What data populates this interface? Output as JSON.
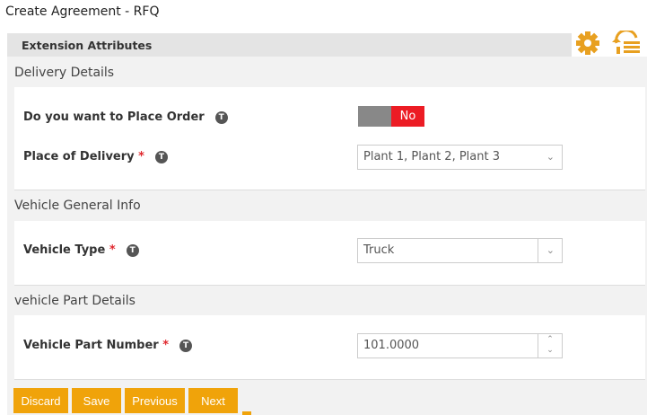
{
  "title": "Create Agreement - RFQ",
  "extension_label": "Extension Attributes",
  "icons": {
    "settings": "gear-icon",
    "back": "back-list-icon",
    "accent": "#f0a30a"
  },
  "sections": [
    {
      "title": "Delivery Details"
    },
    {
      "title": "Vehicle General Info"
    },
    {
      "title": "vehicle Part Details"
    }
  ],
  "fields": {
    "place_order": {
      "label": "Do you want to Place Order",
      "toggle": "No",
      "toggle_on": false
    },
    "place_delivery": {
      "label": "Place of Delivery",
      "required": "*",
      "value": "Plant 1, Plant 2, Plant 3"
    },
    "vehicle_type": {
      "label": "Vehicle Type",
      "required": "*",
      "value": "Truck"
    },
    "part_number": {
      "label": "Vehicle Part Number",
      "required": "*",
      "value": "101.0000"
    }
  },
  "tooltip_glyph": "T",
  "buttons": {
    "discard": "Discard",
    "save": "Save",
    "previous": "Previous",
    "next": "Next"
  }
}
